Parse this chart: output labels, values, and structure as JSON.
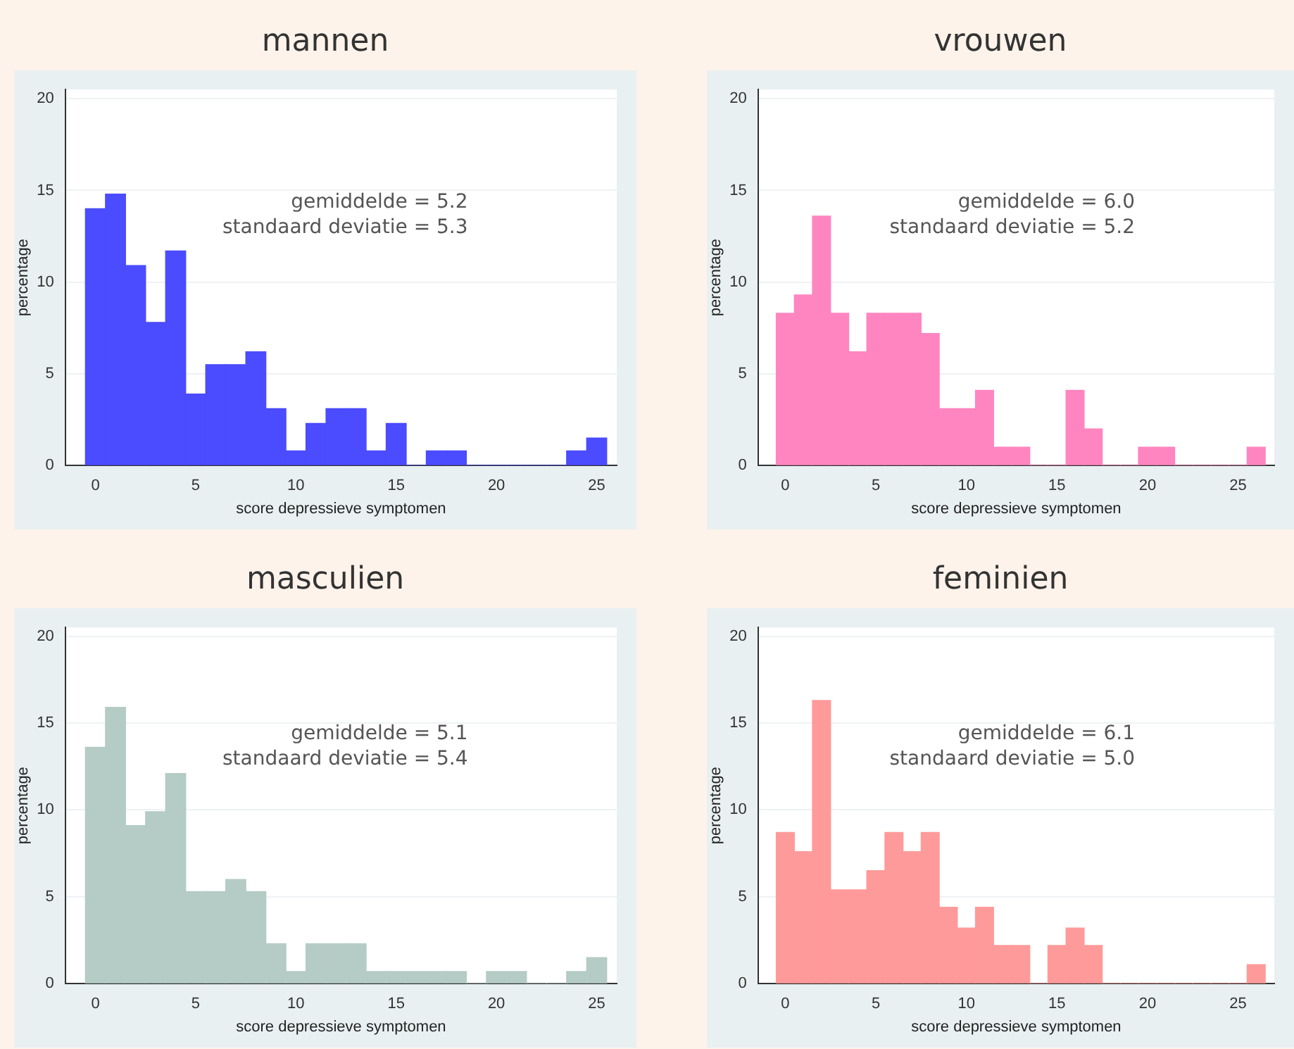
{
  "chart_data": [
    {
      "type": "histogram",
      "title": "mannen",
      "xlabel": "score depressieve symptomen",
      "ylabel": "percentage",
      "color": "#4b4bff",
      "bins": [
        -0.5,
        0.5,
        1.5,
        2.5,
        3.5,
        4.5,
        5.5,
        6.5,
        7.5,
        8.5,
        9.5,
        10.5,
        11.5,
        12.5,
        13.5,
        14.5,
        15.5,
        16.5,
        17.5,
        18.5,
        19.5,
        20.5,
        21.5,
        22.5,
        23.5,
        24.5,
        25.5
      ],
      "values": [
        14.0,
        14.8,
        10.9,
        7.8,
        11.7,
        3.9,
        5.5,
        5.5,
        6.2,
        3.1,
        0.8,
        2.3,
        3.1,
        3.1,
        0.8,
        2.3,
        0,
        0.8,
        0.8,
        0,
        0,
        0,
        0,
        0,
        0.8,
        1.5
      ],
      "xlim": [
        -1.5,
        26
      ],
      "xticks": [
        0,
        5,
        10,
        15,
        20,
        25
      ],
      "ylim": [
        0,
        20.5
      ],
      "yticks": [
        0,
        5,
        10,
        15,
        20
      ],
      "grid": "y",
      "annotations": [
        "gemiddelde = 5.2",
        "standaard deviatie = 5.3"
      ]
    },
    {
      "type": "histogram",
      "title": "vrouwen",
      "xlabel": "score depressieve symptomen",
      "ylabel": "percentage",
      "color": "#ff85c0",
      "bins": [
        -0.5,
        0.5,
        1.5,
        2.5,
        3.5,
        4.5,
        5.5,
        6.5,
        7.5,
        8.5,
        9.5,
        10.5,
        11.5,
        12.5,
        13.5,
        14.5,
        15.5,
        16.5,
        17.5,
        18.5,
        19.5,
        20.5,
        21.5,
        22.5,
        23.5,
        24.5,
        25.5,
        26.5
      ],
      "values": [
        8.3,
        9.3,
        13.6,
        8.3,
        6.2,
        8.3,
        8.3,
        8.3,
        7.2,
        3.1,
        3.1,
        4.1,
        1.0,
        1.0,
        0,
        0,
        4.1,
        2.0,
        0,
        0,
        1.0,
        1.0,
        0,
        0,
        0,
        0,
        1.0
      ],
      "xlim": [
        -1.5,
        27
      ],
      "xticks": [
        0,
        5,
        10,
        15,
        20,
        25
      ],
      "ylim": [
        0,
        20.5
      ],
      "yticks": [
        0,
        5,
        10,
        15,
        20
      ],
      "grid": "y",
      "annotations": [
        "gemiddelde = 6.0",
        "standaard deviatie = 5.2"
      ]
    },
    {
      "type": "histogram",
      "title": "masculien",
      "xlabel": "score depressieve symptomen",
      "ylabel": "percentage",
      "color": "#b5cbc6",
      "bins": [
        -0.5,
        0.5,
        1.5,
        2.5,
        3.5,
        4.5,
        5.5,
        6.5,
        7.5,
        8.5,
        9.5,
        10.5,
        11.5,
        12.5,
        13.5,
        14.5,
        15.5,
        16.5,
        17.5,
        18.5,
        19.5,
        20.5,
        21.5,
        22.5,
        23.5,
        24.5,
        25.5
      ],
      "values": [
        13.6,
        15.9,
        9.1,
        9.9,
        12.1,
        5.3,
        5.3,
        6.0,
        5.3,
        2.3,
        0.7,
        2.3,
        2.3,
        2.3,
        0.7,
        0.7,
        0.7,
        0.7,
        0.7,
        0,
        0.7,
        0.7,
        0,
        0,
        0.7,
        1.5
      ],
      "xlim": [
        -1.5,
        26
      ],
      "xticks": [
        0,
        5,
        10,
        15,
        20,
        25
      ],
      "ylim": [
        0,
        20.5
      ],
      "yticks": [
        0,
        5,
        10,
        15,
        20
      ],
      "grid": "y",
      "annotations": [
        "gemiddelde = 5.1",
        "standaard deviatie = 5.4"
      ]
    },
    {
      "type": "histogram",
      "title": "feminien",
      "xlabel": "score depressieve symptomen",
      "ylabel": "percentage",
      "color": "#ff9a9a",
      "bins": [
        -0.5,
        0.5,
        1.5,
        2.5,
        3.5,
        4.5,
        5.5,
        6.5,
        7.5,
        8.5,
        9.5,
        10.5,
        11.5,
        12.5,
        13.5,
        14.5,
        15.5,
        16.5,
        17.5,
        18.5,
        19.5,
        20.5,
        21.5,
        22.5,
        23.5,
        24.5,
        25.5,
        26.5
      ],
      "values": [
        8.7,
        7.6,
        16.3,
        5.4,
        5.4,
        6.5,
        8.7,
        7.6,
        8.7,
        4.4,
        3.2,
        4.4,
        2.2,
        2.2,
        0,
        2.2,
        3.2,
        2.2,
        0,
        0,
        0,
        0,
        0,
        0,
        0,
        0,
        1.1
      ],
      "xlim": [
        -1.5,
        27
      ],
      "xticks": [
        0,
        5,
        10,
        15,
        20,
        25
      ],
      "ylim": [
        0,
        20.5
      ],
      "yticks": [
        0,
        5,
        10,
        15,
        20
      ],
      "grid": "y",
      "annotations": [
        "gemiddelde = 6.1",
        "standaard deviatie = 5.0"
      ]
    }
  ]
}
